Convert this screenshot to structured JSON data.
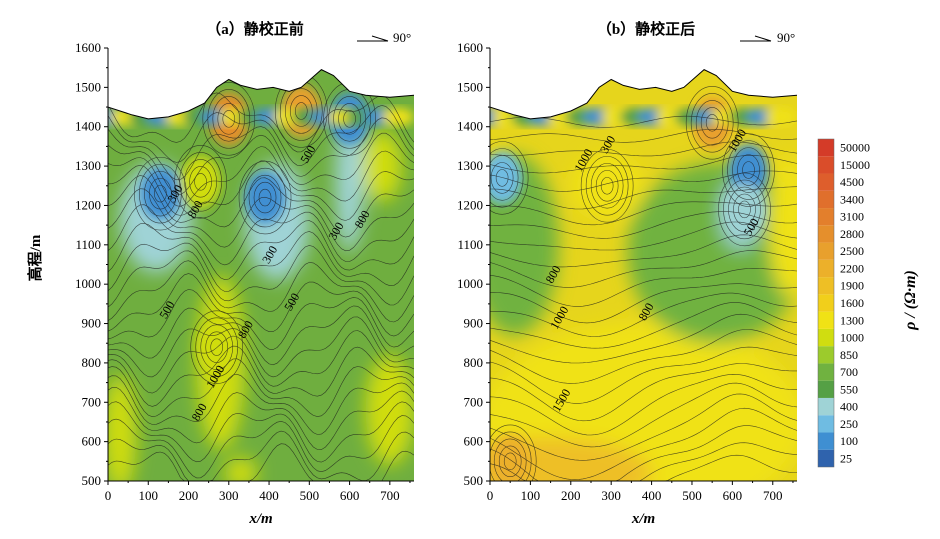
{
  "chart_data": {
    "type": "heatmap",
    "shared": {
      "ylabel": "高程/m",
      "xlabel": "x/m",
      "xlim": [
        0,
        760
      ],
      "ylim": [
        500,
        1600
      ],
      "x_ticks": [
        0,
        100,
        200,
        300,
        400,
        500,
        600,
        700
      ],
      "y_ticks": [
        500,
        600,
        700,
        800,
        900,
        1000,
        1100,
        1200,
        1300,
        1400,
        1500,
        1600
      ],
      "orientation_label": "90°",
      "colorbar": {
        "title": "ρ / (Ω·m)",
        "levels": [
          25,
          100,
          250,
          400,
          550,
          700,
          850,
          1000,
          1300,
          1600,
          1900,
          2200,
          2500,
          2800,
          3100,
          3400,
          4500,
          15000,
          50000
        ],
        "colors": [
          "#2f63ad",
          "#3f8fd2",
          "#6fbce2",
          "#9fd3d6",
          "#55a045",
          "#70b240",
          "#9ccb2c",
          "#d0dd10",
          "#f0e215",
          "#f1cf1b",
          "#eebf25",
          "#ecb02a",
          "#e8a02d",
          "#e58f2c",
          "#e37f2c",
          "#e06f2c",
          "#de5e2c",
          "#da4d2a",
          "#d43b28"
        ]
      }
    },
    "panels": [
      {
        "title": "（a）静校正前",
        "contour_labels": [
          {
            "text": "300",
            "x": 175,
            "y": 1225
          },
          {
            "text": "800",
            "x": 225,
            "y": 1185
          },
          {
            "text": "300",
            "x": 410,
            "y": 1070
          },
          {
            "text": "300",
            "x": 575,
            "y": 1130
          },
          {
            "text": "500",
            "x": 505,
            "y": 1325
          },
          {
            "text": "800",
            "x": 640,
            "y": 1160
          },
          {
            "text": "500",
            "x": 155,
            "y": 930
          },
          {
            "text": "500",
            "x": 465,
            "y": 950
          },
          {
            "text": "800",
            "x": 350,
            "y": 880
          },
          {
            "text": "1000",
            "x": 275,
            "y": 760
          },
          {
            "text": "800",
            "x": 235,
            "y": 670
          }
        ],
        "anomalies": [
          {
            "x": 130,
            "y": 1230,
            "value": 100
          },
          {
            "x": 390,
            "y": 1220,
            "value": 100
          },
          {
            "x": 600,
            "y": 1420,
            "value": 150
          },
          {
            "x": 480,
            "y": 1440,
            "value": 2500
          },
          {
            "x": 300,
            "y": 1420,
            "value": 3000
          },
          {
            "x": 270,
            "y": 840,
            "value": 1100
          },
          {
            "x": 230,
            "y": 1260,
            "value": 1100
          }
        ]
      },
      {
        "title": "（b）静校正后",
        "contour_labels": [
          {
            "text": "300",
            "x": 300,
            "y": 1350
          },
          {
            "text": "1000",
            "x": 240,
            "y": 1310
          },
          {
            "text": "1000",
            "x": 620,
            "y": 1360
          },
          {
            "text": "500",
            "x": 655,
            "y": 1140
          },
          {
            "text": "800",
            "x": 165,
            "y": 1020
          },
          {
            "text": "1000",
            "x": 180,
            "y": 910
          },
          {
            "text": "800",
            "x": 395,
            "y": 925
          },
          {
            "text": "1500",
            "x": 185,
            "y": 700
          }
        ],
        "anomalies": [
          {
            "x": 640,
            "y": 1290,
            "value": 150
          },
          {
            "x": 630,
            "y": 1190,
            "value": 500
          },
          {
            "x": 30,
            "y": 1270,
            "value": 300
          },
          {
            "x": 290,
            "y": 1250,
            "value": 1300
          },
          {
            "x": 550,
            "y": 1410,
            "value": 2500
          },
          {
            "x": 50,
            "y": 550,
            "value": 2200
          }
        ]
      }
    ]
  }
}
